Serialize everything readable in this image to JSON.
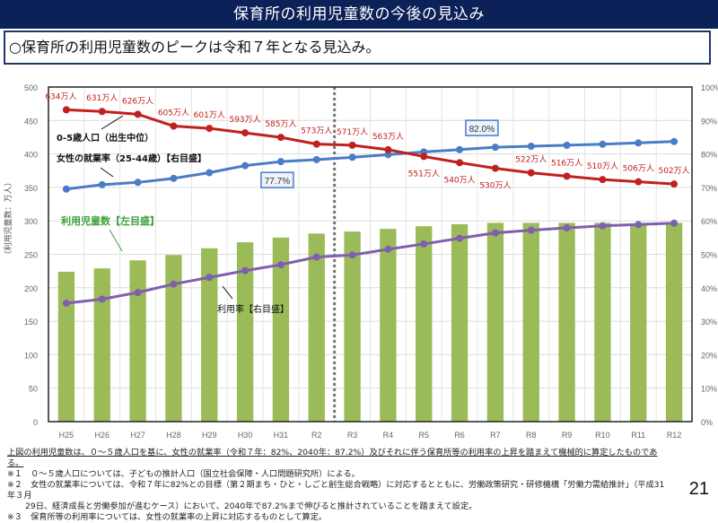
{
  "header": {
    "title": "保育所の利用児童数の今後の見込み"
  },
  "summary": "○保育所の利用児童数のピークは令和７年となる見込み。",
  "chart_data": {
    "type": "bar",
    "title": "",
    "xlabel": "",
    "ylabel": "（利用児童数：万人）",
    "ylim": [
      0,
      500
    ],
    "y2lim": [
      0,
      100
    ],
    "yticks": [
      "0",
      "50",
      "100",
      "150",
      "200",
      "250",
      "300",
      "350",
      "400",
      "450",
      "500"
    ],
    "y2ticks": [
      "0%",
      "10%",
      "20%",
      "30%",
      "40%",
      "50%",
      "60%",
      "70%",
      "80%",
      "90%",
      "100%"
    ],
    "grid": true,
    "categories": [
      "H25",
      "H26",
      "H27",
      "H28",
      "H29",
      "H30",
      "H31",
      "R2",
      "R3",
      "R4",
      "R5",
      "R6",
      "R7",
      "R8",
      "R9",
      "R10",
      "R11",
      "R12"
    ],
    "divider_after_category": "R2",
    "series": [
      {
        "name": "利用児童数【左目盛】",
        "type": "bar",
        "axis": "left",
        "color": "#9bbb59",
        "values": [
          224,
          229,
          241,
          249,
          259,
          268,
          275,
          281,
          284,
          288,
          292,
          295,
          297,
          297,
          297,
          297,
          296,
          297
        ]
      },
      {
        "name": "0-5歳人口（出生中位）",
        "type": "line",
        "axis": "left-scaled",
        "color": "#c0201e",
        "values": [
          634,
          631,
          626,
          605,
          601,
          593,
          585,
          573,
          571,
          563,
          551,
          540,
          530,
          522,
          516,
          510,
          506,
          502
        ],
        "labels": [
          "634万人",
          "631万人",
          "626万人",
          "605万人",
          "601万人",
          "593万人",
          "585万人",
          "573万人",
          "571万人",
          "563万人",
          "551万人",
          "540万人",
          "530万人",
          "522万人",
          "516万人",
          "510万人",
          "506万人",
          "502万人"
        ]
      },
      {
        "name": "女性の就業率（25-44歳）【右目盛】",
        "type": "line",
        "axis": "right",
        "color": "#4a7cc7",
        "values": [
          69.5,
          70.8,
          71.5,
          72.7,
          74.4,
          76.5,
          77.7,
          78.3,
          79.0,
          79.8,
          80.6,
          81.3,
          82.0,
          82.3,
          82.6,
          82.9,
          83.3,
          83.7
        ],
        "callouts": [
          {
            "category": "H31",
            "text": "77.7%"
          },
          {
            "category": "R7",
            "text": "82.0%"
          }
        ]
      },
      {
        "name": "利用率【右目盛】",
        "type": "line",
        "axis": "right",
        "color": "#7f5fae",
        "values": [
          35.4,
          36.6,
          38.6,
          41.1,
          43.1,
          45.1,
          46.9,
          49.2,
          49.8,
          51.5,
          53.1,
          54.8,
          56.4,
          57.2,
          57.9,
          58.5,
          58.9,
          59.3
        ]
      }
    ],
    "annotations": [
      {
        "text": "0-5歳人口（出生中位）",
        "color": "#111"
      },
      {
        "text": "女性の就業率（25-44歳）【右目盛】",
        "color": "#111"
      },
      {
        "text": "利用児童数【左目盛】",
        "color": "#3aa23a"
      },
      {
        "text": "利用率【右目盛】",
        "color": "#111"
      }
    ]
  },
  "notes": {
    "lead": "上図の利用児童数は、０～５歳人口を基に、女性の就業率（令和７年：82%、2040年：87.2%）及びそれに伴う保育所等の利用率の上昇を踏まえて機械的に算定したものである。",
    "items": [
      "※１　０～５歳人口については、子どもの推計人口（国立社会保障・人口問題研究所）による。",
      "※２　女性の就業率については、令和７年に82%との目標（第２期まち・ひと・しごと創生総合戦略）に対応するとともに、労働政策研究・研修機構「労働力需給推計」（平成31年３月",
      "29日、経済成長と労働参加が進むケース）において、2040年で87.2%まで伸びると推計されていることを踏まえて設定。",
      "※３　保育所等の利用率については、女性の就業率の上昇に対応するものとして算定。"
    ]
  },
  "page_number": "21"
}
